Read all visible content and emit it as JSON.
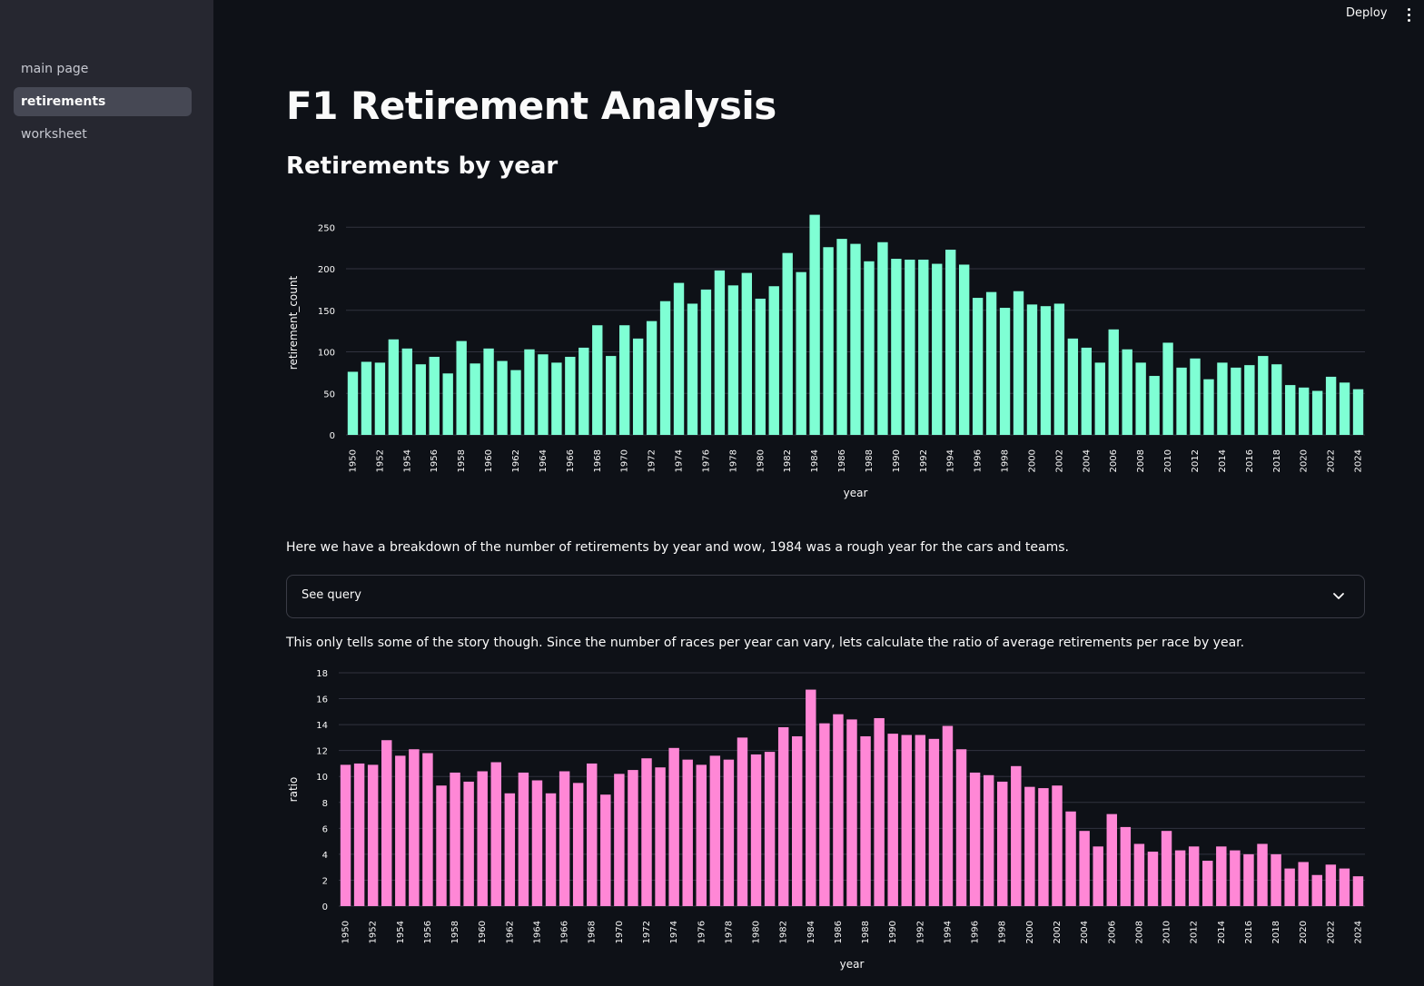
{
  "topbar": {
    "deploy_label": "Deploy",
    "menu_icon": "vertical-ellipsis-icon"
  },
  "sidebar": {
    "items": [
      {
        "label": "main page",
        "active": false
      },
      {
        "label": "retirements",
        "active": true
      },
      {
        "label": "worksheet",
        "active": false
      }
    ]
  },
  "main": {
    "title": "F1 Retirement Analysis",
    "subtitle": "Retirements by year",
    "paragraph1": "Here we have a breakdown of the number of retirements by year and wow, 1984 was a rough year for the cars and teams.",
    "expander_label": "See query",
    "expander_icon": "chevron-down-icon",
    "paragraph2": "This only tells some of the story though. Since the number of races per year can vary, lets calculate the ratio of average retirements per race by year."
  },
  "colors": {
    "accent_teal": "#7fffd4",
    "accent_pink": "#ff87d6"
  },
  "chart_data": [
    {
      "type": "bar",
      "xlabel": "year",
      "ylabel": "retirement_count",
      "ylim": [
        0,
        270
      ],
      "yticks": [
        0,
        50,
        100,
        150,
        200,
        250
      ],
      "grid": true,
      "color": "#7fffd4",
      "categories": [
        "1950",
        "1951",
        "1952",
        "1953",
        "1954",
        "1955",
        "1956",
        "1957",
        "1958",
        "1959",
        "1960",
        "1961",
        "1962",
        "1963",
        "1964",
        "1965",
        "1966",
        "1967",
        "1968",
        "1969",
        "1970",
        "1971",
        "1972",
        "1973",
        "1974",
        "1975",
        "1976",
        "1977",
        "1978",
        "1979",
        "1980",
        "1981",
        "1982",
        "1983",
        "1984",
        "1985",
        "1986",
        "1987",
        "1988",
        "1989",
        "1990",
        "1991",
        "1992",
        "1993",
        "1994",
        "1995",
        "1996",
        "1997",
        "1998",
        "1999",
        "2000",
        "2001",
        "2002",
        "2003",
        "2004",
        "2005",
        "2006",
        "2007",
        "2008",
        "2009",
        "2010",
        "2011",
        "2012",
        "2013",
        "2014",
        "2015",
        "2016",
        "2017",
        "2018",
        "2019",
        "2020",
        "2021",
        "2022",
        "2023",
        "2024"
      ],
      "values": [
        76,
        88,
        87,
        115,
        104,
        85,
        94,
        74,
        113,
        86,
        104,
        89,
        78,
        103,
        97,
        87,
        94,
        105,
        132,
        95,
        132,
        116,
        137,
        161,
        183,
        158,
        175,
        198,
        180,
        195,
        164,
        179,
        219,
        196,
        265,
        226,
        236,
        230,
        209,
        232,
        212,
        211,
        211,
        206,
        223,
        205,
        165,
        172,
        153,
        173,
        157,
        155,
        158,
        116,
        105,
        87,
        127,
        103,
        87,
        71,
        111,
        81,
        92,
        67,
        87,
        81,
        84,
        95,
        85,
        60,
        57,
        53,
        70,
        63,
        55
      ]
    },
    {
      "type": "bar",
      "xlabel": "year",
      "ylabel": "ratio",
      "ylim": [
        0,
        18
      ],
      "yticks": [
        0,
        2,
        4,
        6,
        8,
        10,
        12,
        14,
        16,
        18
      ],
      "grid": true,
      "color": "#ff87d6",
      "categories": [
        "1950",
        "1951",
        "1952",
        "1953",
        "1954",
        "1955",
        "1956",
        "1957",
        "1958",
        "1959",
        "1960",
        "1961",
        "1962",
        "1963",
        "1964",
        "1965",
        "1966",
        "1967",
        "1968",
        "1969",
        "1970",
        "1971",
        "1972",
        "1973",
        "1974",
        "1975",
        "1976",
        "1977",
        "1978",
        "1979",
        "1980",
        "1981",
        "1982",
        "1983",
        "1984",
        "1985",
        "1986",
        "1987",
        "1988",
        "1989",
        "1990",
        "1991",
        "1992",
        "1993",
        "1994",
        "1995",
        "1996",
        "1997",
        "1998",
        "1999",
        "2000",
        "2001",
        "2002",
        "2003",
        "2004",
        "2005",
        "2006",
        "2007",
        "2008",
        "2009",
        "2010",
        "2011",
        "2012",
        "2013",
        "2014",
        "2015",
        "2016",
        "2017",
        "2018",
        "2019",
        "2020",
        "2021",
        "2022",
        "2023",
        "2024"
      ],
      "values": [
        10.9,
        11.0,
        10.9,
        12.8,
        11.6,
        12.1,
        11.8,
        9.3,
        10.3,
        9.6,
        10.4,
        11.1,
        8.7,
        10.3,
        9.7,
        8.7,
        10.4,
        9.5,
        11.0,
        8.6,
        10.2,
        10.5,
        11.4,
        10.7,
        12.2,
        11.3,
        10.9,
        11.6,
        11.3,
        13.0,
        11.7,
        11.9,
        13.8,
        13.1,
        16.7,
        14.1,
        14.8,
        14.4,
        13.1,
        14.5,
        13.3,
        13.2,
        13.2,
        12.9,
        13.9,
        12.1,
        10.3,
        10.1,
        9.6,
        10.8,
        9.2,
        9.1,
        9.3,
        7.3,
        5.8,
        4.6,
        7.1,
        6.1,
        4.8,
        4.2,
        5.8,
        4.3,
        4.6,
        3.5,
        4.6,
        4.3,
        4.0,
        4.8,
        4.0,
        2.9,
        3.4,
        2.4,
        3.2,
        2.9,
        2.3
      ]
    }
  ]
}
